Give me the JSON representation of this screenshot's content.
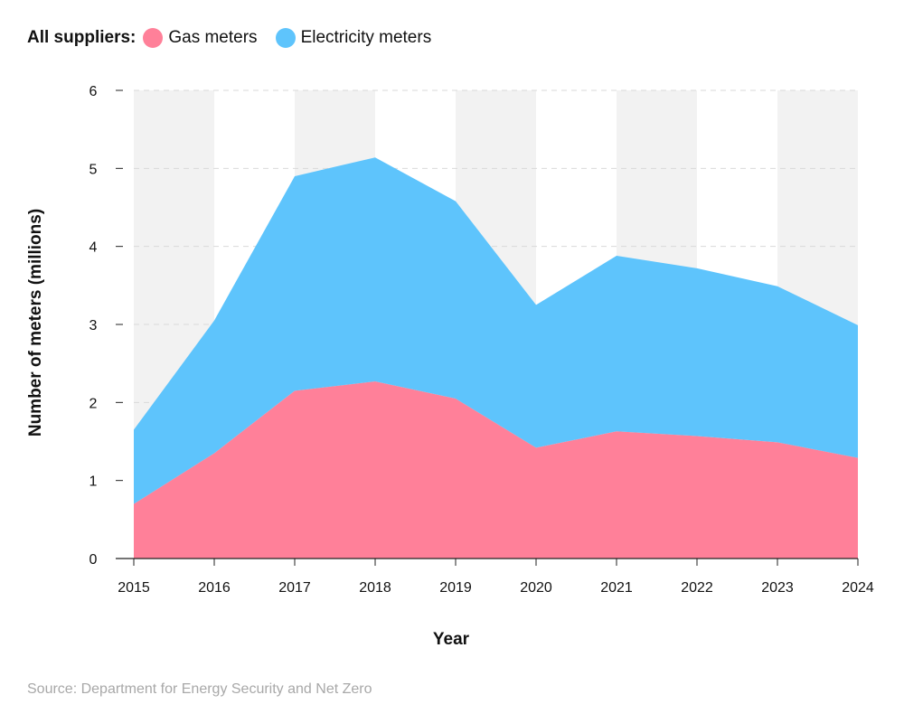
{
  "legend": {
    "title": "All suppliers:",
    "items": [
      {
        "label": "Gas meters",
        "color": "#ff8099"
      },
      {
        "label": "Electricity meters",
        "color": "#5ec4fc"
      }
    ]
  },
  "source": "Source: Department for Energy Security and Net Zero",
  "chart_data": {
    "type": "area",
    "stacked": true,
    "x": [
      2015,
      2016,
      2017,
      2018,
      2019,
      2020,
      2021,
      2022,
      2023,
      2024
    ],
    "x_tick_labels": [
      "2015",
      "2016",
      "2017",
      "2018",
      "2019",
      "2020",
      "2021",
      "2022",
      "2023",
      "2024"
    ],
    "series": [
      {
        "name": "Gas meters",
        "color": "#ff8099",
        "values": [
          0.7,
          1.35,
          2.15,
          2.27,
          2.05,
          1.42,
          1.63,
          1.57,
          1.49,
          1.29
        ]
      },
      {
        "name": "Electricity meters",
        "color": "#5ec4fc",
        "values": [
          0.95,
          1.7,
          2.75,
          2.87,
          2.53,
          1.83,
          2.25,
          2.15,
          2.0,
          1.7
        ]
      }
    ],
    "xlabel": "Year",
    "ylabel": "Number of meters (millions)",
    "ylim": [
      0,
      6
    ],
    "yticks": [
      0,
      1,
      2,
      3,
      4,
      5,
      6
    ],
    "grid": true,
    "band_color": "#f2f2f2",
    "legend_position": "top-left"
  }
}
